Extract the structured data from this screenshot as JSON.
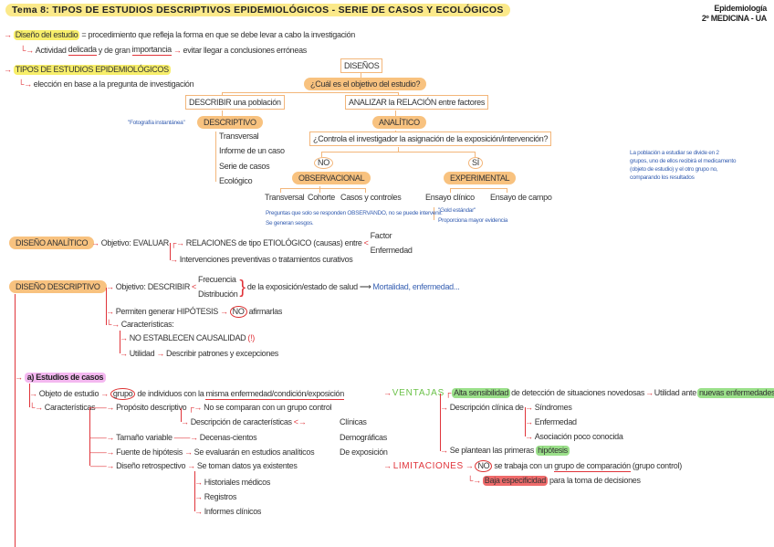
{
  "header": {
    "title": "Tema 8: TIPOS DE ESTUDIOS DESCRIPTIVOS EPIDEMIOLÓGICOS - SERIE DE CASOS Y ECOLÓGICOS",
    "subject": "Epidemiología",
    "course": "2º MEDICINA - UA"
  },
  "intro": {
    "design_term": "Diseño del estudio",
    "design_def": "= procedimiento que refleja la forma en que se debe levar a cabo la investigación",
    "activity_a": "Actividad",
    "activity_b": "delicada",
    "activity_c": "y de gran",
    "activity_d": "importancia",
    "activity_e": "evitar llegar a conclusiones erróneas",
    "types_title": "TIPOS DE ESTUDIOS EPIDEMIOLÓGICOS",
    "types_sub": "elección en base a la pregunta de investigación"
  },
  "diagram": {
    "root": "DISEÑOS",
    "question": "¿Cuál es el objetivo del estudio?",
    "describe": "DESCRIBIR una población",
    "analyze": "ANALIZAR la RELACIÓN entre factores",
    "snapshot_note": "\"Fotografía instantánea\"",
    "descriptive": "DESCRIPTIVO",
    "descriptive_items": [
      "Transversal",
      "Informe de un caso",
      "Serie de casos",
      "Ecológico"
    ],
    "analytic": "ANALÍTICO",
    "control_question": "¿Controla el investigador la asignación de la exposición/intervención?",
    "no": "NO",
    "yes": "SÍ",
    "observational": "OBSERVACIONAL",
    "experimental": "EXPERIMENTAL",
    "observational_items": [
      "Transversal",
      "Cohorte",
      "Casos y controles"
    ],
    "experimental_items": [
      "Ensayo clínico",
      "Ensayo de campo"
    ],
    "observational_notes": [
      "Preguntas que solo se responden OBSERVANDO, no se puede intervenir.",
      "Se generan sesgos."
    ],
    "experimental_notes": [
      "\"Gold estándar\"",
      "Proporciona mayor evidencia"
    ],
    "experimental_side_note": [
      "La población a estudiar se divide en 2",
      "grupos, uno de ellos recibirá el medicamento",
      "(objeto de estudio) y el otro grupo no,",
      "comparando los resultados"
    ]
  },
  "analytic_design": {
    "label": "DISEÑO ANALÍTICO",
    "objective": "Objetivo: EVALUAR",
    "relations": "RELACIONES de tipo ETIOLÓGICO (causas) entre",
    "factor": "Factor",
    "disease": "Enfermedad",
    "interventions": "Intervenciones preventivas o tratamientos curativos"
  },
  "descriptive_design": {
    "label": "DISEÑO DESCRIPTIVO",
    "objective": "Objetivo: DESCRIBIR",
    "frequency": "Frecuencia",
    "distribution": "Distribución",
    "of_exposure": "de la exposición/estado de salud",
    "examples": "Mortalidad, enfermedad...",
    "hypothesis": "Permiten generar HIPÓTESIS",
    "no": "NO",
    "affirm": "afirmarlas",
    "characteristics": "Características:",
    "no_causality": "NO ESTABLECEN CAUSALIDAD",
    "no_causality_mark": "(!)",
    "utility": "Utilidad",
    "utility_desc": "Describir patrones y excepciones"
  },
  "case_studies": {
    "title": "a) Estudios de casos",
    "object_label": "Objeto de estudio",
    "object_group": "grupo",
    "object_rest_a": "de individuos con la",
    "object_rest_b": "misma enfermedad/condición/exposición",
    "characteristics": "Características",
    "purpose": "Propósito descriptivo",
    "no_compare": "No se comparan con un grupo control",
    "desc_chars": "Descripción de características",
    "char_types": [
      "Clínicas",
      "Demográficas",
      "De exposición"
    ],
    "size": "Tamaño variable",
    "size_val": "Decenas-cientos",
    "source": "Fuente de hipótesis",
    "source_val": "Se evaluarán en estudios analíticos",
    "retro": "Diseño retrospectivo",
    "retro_val": "Se toman datos ya existentes",
    "retro_items": [
      "Historiales médicos",
      "Registros",
      "Informes clínicos"
    ],
    "advantages": "VENTAJAS",
    "adv_sens": "Alta sensibilidad",
    "adv_sens_rest": "de detección de situaciones novedosas",
    "adv_util": "Utilidad ante",
    "adv_new": "nuevas enfermedades",
    "adv_clinical": "Descripción clínica de",
    "adv_clinical_items": [
      "Síndromes",
      "Enfermedad",
      "Asociación poco conocida"
    ],
    "adv_hyp_a": "Se plantean las primeras",
    "adv_hyp_b": "hipótesis",
    "limitations": "LIMITACIONES",
    "lim_no": "NO",
    "lim_a": "se trabaja con un",
    "lim_b": "grupo de comparación",
    "lim_c": "(grupo control)",
    "lim_spec": "Baja especificidad",
    "lim_spec_rest": "para la toma de decisiones"
  }
}
